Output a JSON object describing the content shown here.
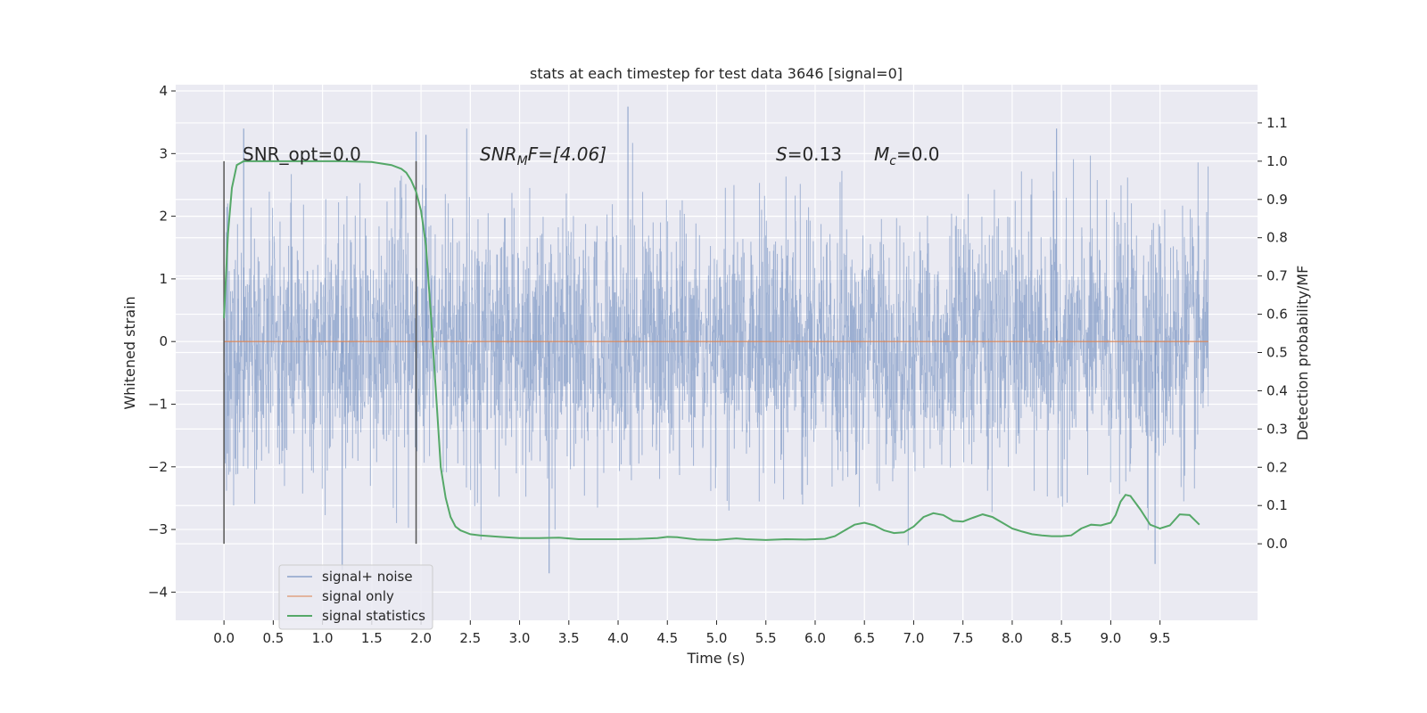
{
  "chart_data": {
    "type": "line",
    "title": "stats at each timestep for test data 3646 [signal=0]",
    "xlabel": "Time (s)",
    "ylabel": "Whitened strain",
    "y2label": "Detection probability/MF",
    "xlim": [
      -0.49,
      10.49
    ],
    "ylim": [
      -4.45,
      4.1
    ],
    "y2lim": [
      -0.2,
      1.2
    ],
    "xticks": [
      "0.0",
      "0.5",
      "1.0",
      "1.5",
      "2.0",
      "2.5",
      "3.0",
      "3.5",
      "4.0",
      "4.5",
      "5.0",
      "5.5",
      "6.0",
      "6.5",
      "7.0",
      "7.5",
      "8.0",
      "8.5",
      "9.0",
      "9.5"
    ],
    "yticks": [
      "−4",
      "−3",
      "−2",
      "−1",
      "0",
      "1",
      "2",
      "3",
      "4"
    ],
    "y2ticks": [
      "0.0",
      "0.1",
      "0.2",
      "0.3",
      "0.4",
      "0.5",
      "0.6",
      "0.7",
      "0.8",
      "0.9",
      "1.0",
      "1.1"
    ],
    "grid": true,
    "legend_position": "lower-left",
    "colors": {
      "noise": "#4c72b0",
      "signal": "#dd8452",
      "statistics": "#55a868",
      "vline": "#555555",
      "background": "#eaeaf2",
      "grid": "#ffffff"
    },
    "series": [
      {
        "name": "signal+ noise",
        "t_start": 0.0,
        "t_end": 9.99,
        "amplitude_std": 1.0,
        "peaks": [
          {
            "t": 4.1,
            "y": 3.75
          },
          {
            "t": 1.2,
            "y": -3.65
          },
          {
            "t": 3.3,
            "y": -3.7
          },
          {
            "t": 9.45,
            "y": -3.55
          },
          {
            "t": 0.2,
            "y": 3.4
          },
          {
            "t": 1.95,
            "y": 3.35
          },
          {
            "t": 2.05,
            "y": 3.3
          },
          {
            "t": 8.45,
            "y": 3.4
          }
        ]
      },
      {
        "name": "signal only",
        "t_start": 0.0,
        "t_end": 9.99,
        "y": 0.0
      },
      {
        "name": "signal statistics",
        "axis": "right",
        "x": [
          0.0,
          0.04,
          0.08,
          0.13,
          0.2,
          0.3,
          0.5,
          0.8,
          1.0,
          1.2,
          1.5,
          1.7,
          1.8,
          1.85,
          1.9,
          1.95,
          2.0,
          2.05,
          2.1,
          2.15,
          2.2,
          2.25,
          2.3,
          2.35,
          2.4,
          2.5,
          2.6,
          2.8,
          3.0,
          3.2,
          3.4,
          3.6,
          3.8,
          4.0,
          4.2,
          4.4,
          4.5,
          4.6,
          4.8,
          5.0,
          5.1,
          5.2,
          5.3,
          5.5,
          5.7,
          5.9,
          6.1,
          6.2,
          6.3,
          6.4,
          6.5,
          6.6,
          6.7,
          6.8,
          6.9,
          7.0,
          7.1,
          7.2,
          7.3,
          7.4,
          7.5,
          7.6,
          7.7,
          7.8,
          7.9,
          8.0,
          8.1,
          8.2,
          8.3,
          8.4,
          8.5,
          8.6,
          8.7,
          8.8,
          8.9,
          9.0,
          9.05,
          9.1,
          9.15,
          9.2,
          9.3,
          9.4,
          9.5,
          9.6,
          9.7,
          9.8,
          9.9
        ],
        "y": [
          0.59,
          0.81,
          0.93,
          0.99,
          1.0,
          1.0,
          1.0,
          1.0,
          1.0,
          1.0,
          0.998,
          0.99,
          0.98,
          0.97,
          0.95,
          0.92,
          0.87,
          0.78,
          0.6,
          0.4,
          0.2,
          0.12,
          0.07,
          0.045,
          0.035,
          0.025,
          0.022,
          0.018,
          0.015,
          0.015,
          0.016,
          0.012,
          0.012,
          0.012,
          0.013,
          0.015,
          0.018,
          0.017,
          0.011,
          0.01,
          0.012,
          0.014,
          0.012,
          0.01,
          0.012,
          0.011,
          0.013,
          0.02,
          0.035,
          0.05,
          0.055,
          0.048,
          0.035,
          0.028,
          0.03,
          0.045,
          0.07,
          0.08,
          0.075,
          0.06,
          0.058,
          0.068,
          0.077,
          0.07,
          0.055,
          0.04,
          0.032,
          0.025,
          0.022,
          0.02,
          0.02,
          0.022,
          0.04,
          0.05,
          0.048,
          0.055,
          0.075,
          0.11,
          0.128,
          0.125,
          0.09,
          0.05,
          0.04,
          0.048,
          0.077,
          0.075,
          0.05
        ]
      }
    ],
    "vlines": [
      0.0,
      1.95
    ],
    "annotations": {
      "snr_opt": "SNR_opt=0.0",
      "snr_mf_base": "SNR",
      "snr_mf_sub": "M",
      "snr_mf_rest": "F=[4.06]",
      "s_label": "S",
      "s_value": "=0.13",
      "mc_label": "M",
      "mc_sub": "c",
      "mc_value": "=0.0"
    },
    "legend": [
      "signal+ noise",
      "signal only",
      "signal statistics"
    ]
  }
}
